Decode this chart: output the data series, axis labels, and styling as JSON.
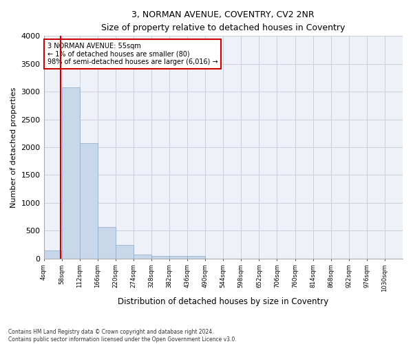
{
  "title": "3, NORMAN AVENUE, COVENTRY, CV2 2NR",
  "subtitle": "Size of property relative to detached houses in Coventry",
  "xlabel": "Distribution of detached houses by size in Coventry",
  "ylabel": "Number of detached properties",
  "footer_line1": "Contains HM Land Registry data © Crown copyright and database right 2024.",
  "footer_line2": "Contains public sector information licensed under the Open Government Licence v3.0.",
  "annotation_line1": "3 NORMAN AVENUE: 55sqm",
  "annotation_line2": "← 1% of detached houses are smaller (80)",
  "annotation_line3": "98% of semi-detached houses are larger (6,016) →",
  "bar_color": "#c8d8ea",
  "bar_edge_color": "#8aaac8",
  "marker_line_color": "#cc0000",
  "annotation_box_color": "#cc0000",
  "background_color": "#eef2f8",
  "grid_color": "#c8d0dc",
  "bin_edges": [
    4,
    58,
    112,
    166,
    220,
    274,
    328,
    382,
    436,
    490,
    544,
    598,
    652,
    706,
    760,
    814,
    868,
    922,
    976,
    1030,
    1084
  ],
  "bar_heights": [
    150,
    3080,
    2070,
    560,
    240,
    70,
    40,
    40,
    40,
    0,
    0,
    0,
    0,
    0,
    0,
    0,
    0,
    0,
    0,
    0
  ],
  "property_size": 55,
  "ylim": [
    0,
    4000
  ],
  "yticks": [
    0,
    500,
    1000,
    1500,
    2000,
    2500,
    3000,
    3500,
    4000
  ]
}
